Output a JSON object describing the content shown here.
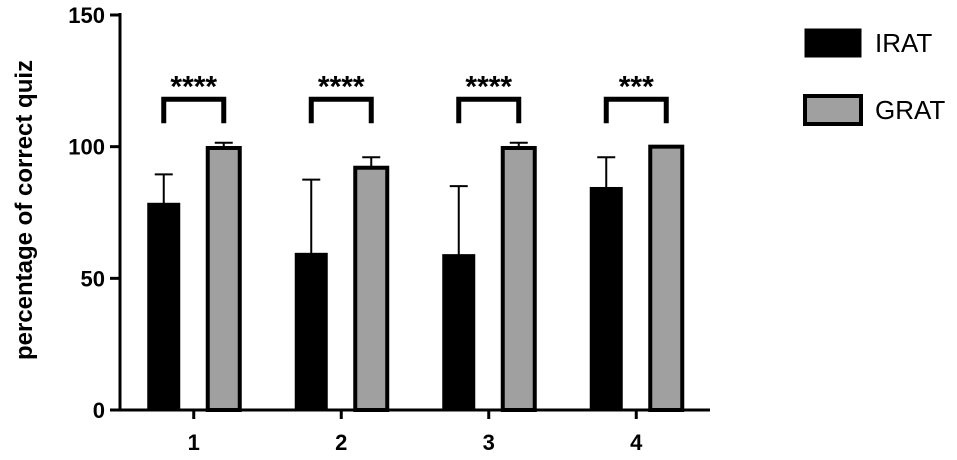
{
  "chart_data": {
    "type": "bar",
    "title": "",
    "xlabel": "",
    "ylabel": "percentage of correct quiz",
    "ylim": [
      0,
      150
    ],
    "yticks": [
      0,
      50,
      100,
      150
    ],
    "categories": [
      "1",
      "2",
      "3",
      "4"
    ],
    "series": [
      {
        "name": "IRAT",
        "color": "#000000",
        "values": [
          78.5,
          59.5,
          59,
          84.5
        ],
        "errors": [
          11,
          28,
          26,
          11.5
        ]
      },
      {
        "name": "GRAT",
        "color": "#a0a0a0",
        "values": [
          99.5,
          92,
          99.5,
          100
        ],
        "errors": [
          2,
          4,
          2,
          0
        ]
      }
    ],
    "significance": [
      "****",
      "****",
      "****",
      "***"
    ],
    "legend_position": "top-right",
    "grid": false
  }
}
